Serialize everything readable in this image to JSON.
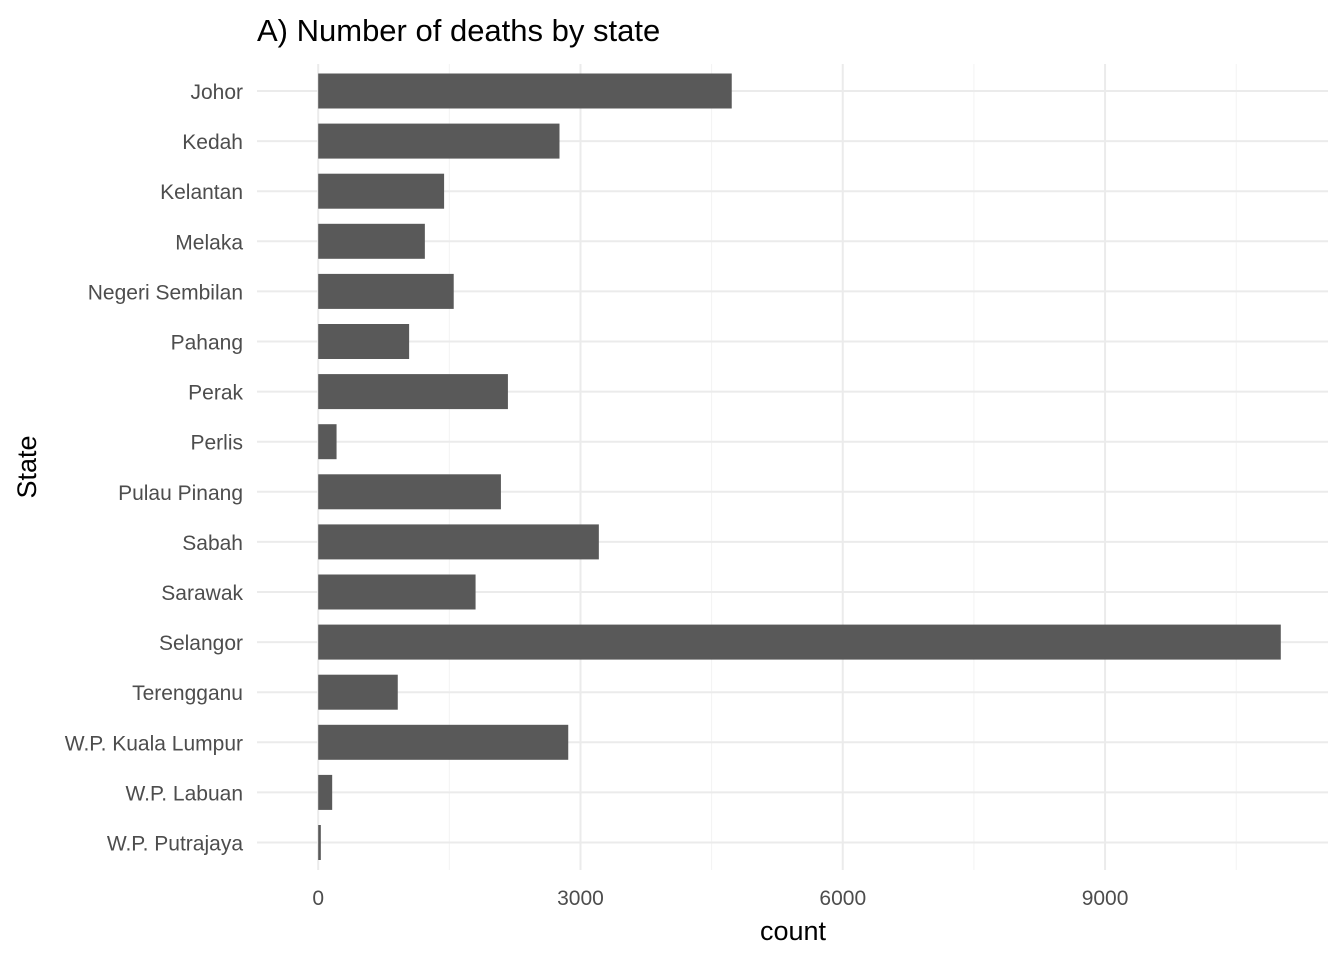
{
  "chart_data": {
    "type": "bar",
    "orientation": "horizontal",
    "title": "A) Number of deaths by state",
    "xlabel": "count",
    "ylabel": "State",
    "xlim": [
      -700,
      11550
    ],
    "x_ticks": [
      0,
      3000,
      6000,
      9000
    ],
    "x_tick_labels": [
      "0",
      "3000",
      "6000",
      "9000"
    ],
    "grid": true,
    "bar_color": "#595959",
    "categories": [
      "Johor",
      "Kedah",
      "Kelantan",
      "Melaka",
      "Negeri Sembilan",
      "Pahang",
      "Perak",
      "Perlis",
      "Pulau Pinang",
      "Sabah",
      "Sarawak",
      "Selangor",
      "Terengganu",
      "W.P. Kuala Lumpur",
      "W.P. Labuan",
      "W.P. Putrajaya"
    ],
    "values": [
      4730,
      2760,
      1440,
      1220,
      1550,
      1040,
      2170,
      210,
      2090,
      3210,
      1800,
      11010,
      910,
      2860,
      160,
      30
    ]
  }
}
